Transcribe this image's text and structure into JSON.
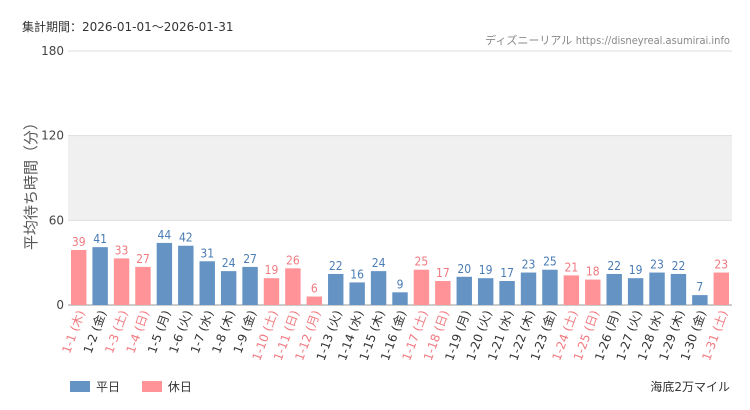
{
  "header": {
    "period": "集計期間：2026-01-01～2026-01-31",
    "site_name": "ディズニーリアル",
    "site_url": "https://disneyreal.asumirai.info"
  },
  "attraction": "海底2万マイル",
  "colors": {
    "weekday": "#6493C4",
    "holiday": "#FF9398",
    "weekday_text": "#4A7CB5",
    "holiday_text": "#F07A80",
    "band": "#F0F0F0"
  },
  "chart_data": {
    "type": "bar",
    "ylabel": "平均待ち時間（分）",
    "ylim": [
      0,
      180
    ],
    "yticks": [
      0,
      60,
      120,
      180
    ],
    "shaded_band": [
      60,
      120
    ],
    "legend": [
      {
        "name": "平日",
        "key": "weekday"
      },
      {
        "name": "休日",
        "key": "holiday"
      }
    ],
    "categories": [
      "1-1 (木)",
      "1-2 (金)",
      "1-3 (土)",
      "1-4 (日)",
      "1-5 (月)",
      "1-6 (火)",
      "1-7 (水)",
      "1-8 (木)",
      "1-9 (金)",
      "1-10 (土)",
      "1-11 (日)",
      "1-12 (月)",
      "1-13 (火)",
      "1-14 (水)",
      "1-15 (木)",
      "1-16 (金)",
      "1-17 (土)",
      "1-18 (日)",
      "1-19 (月)",
      "1-20 (火)",
      "1-21 (水)",
      "1-22 (木)",
      "1-23 (金)",
      "1-24 (土)",
      "1-25 (日)",
      "1-26 (月)",
      "1-27 (火)",
      "1-28 (水)",
      "1-29 (木)",
      "1-30 (金)",
      "1-31 (土)"
    ],
    "values": [
      39,
      41,
      33,
      27,
      44,
      42,
      31,
      24,
      27,
      19,
      26,
      6,
      22,
      16,
      24,
      9,
      25,
      17,
      20,
      19,
      17,
      23,
      25,
      21,
      18,
      22,
      19,
      23,
      22,
      7,
      23
    ],
    "day_type": [
      "holiday",
      "weekday",
      "holiday",
      "holiday",
      "weekday",
      "weekday",
      "weekday",
      "weekday",
      "weekday",
      "holiday",
      "holiday",
      "holiday",
      "weekday",
      "weekday",
      "weekday",
      "weekday",
      "holiday",
      "holiday",
      "weekday",
      "weekday",
      "weekday",
      "weekday",
      "weekday",
      "holiday",
      "holiday",
      "weekday",
      "weekday",
      "weekday",
      "weekday",
      "weekday",
      "holiday"
    ]
  }
}
